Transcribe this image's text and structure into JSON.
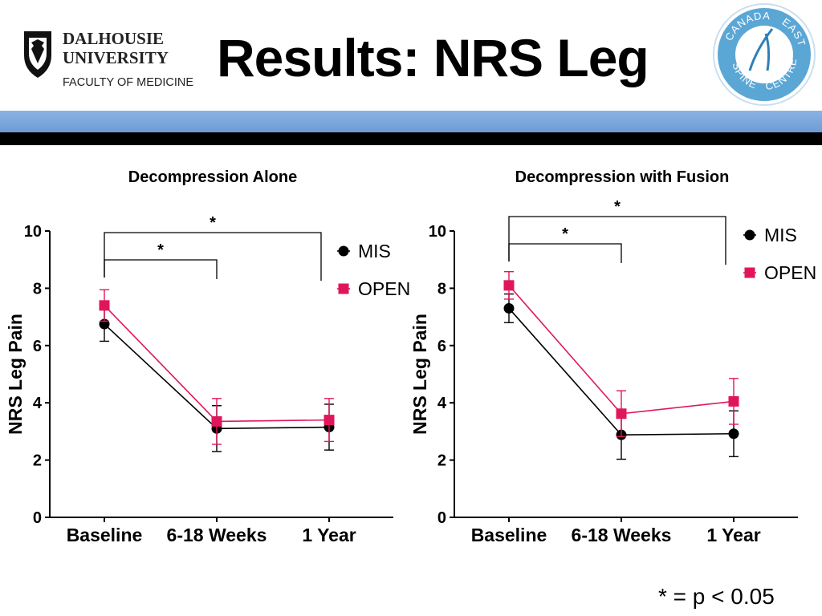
{
  "slide": {
    "title": "Results: NRS Leg",
    "footnote": "* = p < 0.05"
  },
  "logos": {
    "left": {
      "line1": "DALHOUSIE",
      "line2": "UNIVERSITY",
      "line3": "FACULTY OF MEDICINE"
    },
    "right": {
      "word1": "CANADA",
      "word2": "EAST",
      "word3": "SPINE",
      "word4": "CENTRE"
    }
  },
  "colors": {
    "mis": "#000000",
    "open": "#e0165c",
    "band_blue": "#6f9bd6",
    "band_black": "#000000"
  },
  "chart_data": [
    {
      "type": "line",
      "title": "Decompression Alone",
      "ylabel": "NRS Leg Pain",
      "xlabel": "",
      "categories": [
        "Baseline",
        "6-18 Weeks",
        "1 Year"
      ],
      "ylim": [
        0,
        10
      ],
      "yticks": [
        0,
        2,
        4,
        6,
        8,
        10
      ],
      "grid": false,
      "legend_position": "top-right",
      "series": [
        {
          "name": "MIS",
          "marker": "circle",
          "values": [
            6.75,
            3.1,
            3.15
          ],
          "error": [
            0.6,
            0.8,
            0.8
          ]
        },
        {
          "name": "OPEN",
          "marker": "square",
          "values": [
            7.4,
            3.35,
            3.4
          ],
          "error": [
            0.55,
            0.8,
            0.75
          ]
        }
      ],
      "significance": [
        {
          "from": "Baseline",
          "to": "6-18 Weeks",
          "label": "*"
        },
        {
          "from": "Baseline",
          "to": "1 Year",
          "label": "*"
        }
      ]
    },
    {
      "type": "line",
      "title": "Decompression with Fusion",
      "ylabel": "NRS Leg Pain",
      "xlabel": "",
      "categories": [
        "Baseline",
        "6-18 Weeks",
        "1 Year"
      ],
      "ylim": [
        0,
        10
      ],
      "yticks": [
        0,
        2,
        4,
        6,
        8,
        10
      ],
      "grid": false,
      "legend_position": "top-right",
      "series": [
        {
          "name": "MIS",
          "marker": "circle",
          "values": [
            7.3,
            2.88,
            2.92
          ],
          "error": [
            0.5,
            0.85,
            0.8
          ]
        },
        {
          "name": "OPEN",
          "marker": "square",
          "values": [
            8.1,
            3.62,
            4.05
          ],
          "error": [
            0.48,
            0.8,
            0.8
          ]
        }
      ],
      "significance": [
        {
          "from": "Baseline",
          "to": "6-18 Weeks",
          "label": "*"
        },
        {
          "from": "Baseline",
          "to": "1 Year",
          "label": "*"
        }
      ]
    }
  ]
}
